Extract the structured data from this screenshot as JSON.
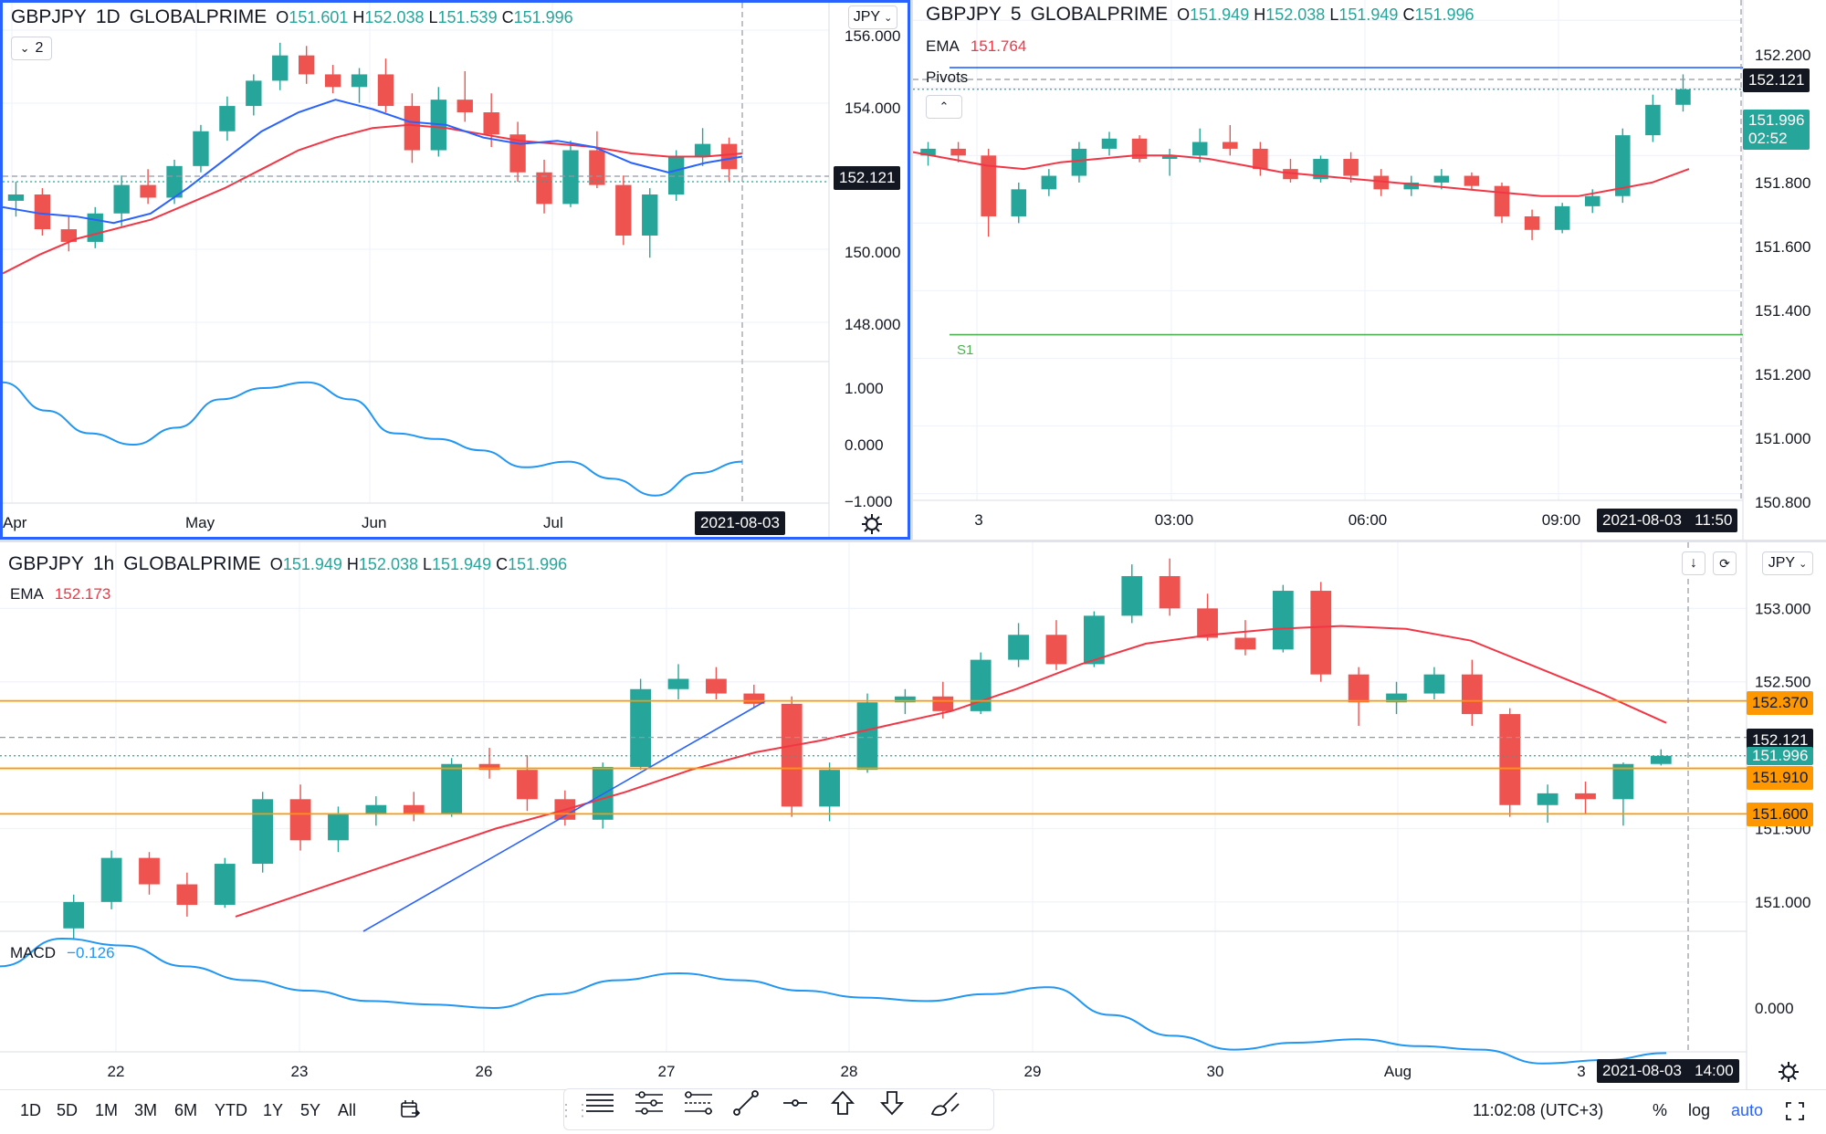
{
  "colors": {
    "up": "#26a69a",
    "down": "#ef5350",
    "ema": "#f23645",
    "blue": "#2962ff",
    "orange": "#ff9800",
    "pivot_green": "#4caf50",
    "bg": "#ffffff"
  },
  "chart_data": [
    {
      "type": "candlestick",
      "symbol": "GBPJPY",
      "interval": "1D",
      "broker": "GLOBALPRIME",
      "ohlc": {
        "o": "151.601",
        "h": "152.038",
        "l": "151.539",
        "c": "151.996"
      },
      "y_ticks": [
        "156.000",
        "154.000",
        "152.121",
        "150.000",
        "148.000"
      ],
      "ylim": [
        146.0,
        156.4
      ],
      "x_ticks": [
        "Apr",
        "May",
        "Jun",
        "Jul"
      ],
      "crosshair_date": "2021-08-03",
      "oscillator_ticks": [
        "1.000",
        "0.000",
        "−1.000"
      ],
      "series": [
        {
          "name": "EMA fast",
          "values": [
            150.8,
            150.6,
            150.5,
            150.3,
            150.6,
            151.4,
            152.3,
            153.2,
            153.8,
            154.2,
            153.9,
            153.5,
            153.4,
            153.0,
            152.8,
            152.9,
            152.7,
            152.2,
            151.9,
            152.2,
            152.4
          ]
        },
        {
          "name": "EMA slow",
          "values": [
            148.7,
            149.3,
            149.8,
            150.1,
            150.4,
            150.9,
            151.4,
            152.0,
            152.6,
            153.0,
            153.3,
            153.4,
            153.3,
            153.1,
            152.9,
            152.8,
            152.7,
            152.5,
            152.4,
            152.4,
            152.5
          ]
        },
        {
          "name": "oscillator",
          "values": [
            1.1,
            0.6,
            0.2,
            0.0,
            0.3,
            0.8,
            1.0,
            1.1,
            0.8,
            0.2,
            0.1,
            -0.1,
            -0.4,
            -0.3,
            -0.6,
            -0.9,
            -0.5,
            -0.3
          ]
        }
      ],
      "candles": [
        [
          151.0,
          151.6,
          150.5,
          151.2
        ],
        [
          151.2,
          151.4,
          149.9,
          150.1
        ],
        [
          150.1,
          150.5,
          149.4,
          149.7
        ],
        [
          149.7,
          150.8,
          149.5,
          150.6
        ],
        [
          150.6,
          151.8,
          150.2,
          151.5
        ],
        [
          151.5,
          152.0,
          150.9,
          151.1
        ],
        [
          151.1,
          152.3,
          150.9,
          152.1
        ],
        [
          152.1,
          153.4,
          151.9,
          153.2
        ],
        [
          153.2,
          154.3,
          152.9,
          154.0
        ],
        [
          154.0,
          155.0,
          153.7,
          154.8
        ],
        [
          154.8,
          156.0,
          154.5,
          155.6
        ],
        [
          155.6,
          155.9,
          154.7,
          155.0
        ],
        [
          155.0,
          155.3,
          154.4,
          154.6
        ],
        [
          154.6,
          155.2,
          154.1,
          155.0
        ],
        [
          155.0,
          155.5,
          153.8,
          154.0
        ],
        [
          154.0,
          154.4,
          152.2,
          152.6
        ],
        [
          152.6,
          154.6,
          152.4,
          154.2
        ],
        [
          154.2,
          155.1,
          153.5,
          153.8
        ],
        [
          153.8,
          154.4,
          152.7,
          153.1
        ],
        [
          153.1,
          153.5,
          151.6,
          151.9
        ],
        [
          151.9,
          152.3,
          150.6,
          150.9
        ],
        [
          150.9,
          152.9,
          150.8,
          152.6
        ],
        [
          152.6,
          153.2,
          151.4,
          151.5
        ],
        [
          151.5,
          151.8,
          149.6,
          149.9
        ],
        [
          149.9,
          151.4,
          149.2,
          151.2
        ],
        [
          151.2,
          152.6,
          151.0,
          152.4
        ],
        [
          152.4,
          153.3,
          152.1,
          152.8
        ],
        [
          152.8,
          153.0,
          151.6,
          152.0
        ]
      ]
    },
    {
      "type": "candlestick",
      "symbol": "GBPJPY",
      "interval": "5",
      "broker": "GLOBALPRIME",
      "ohlc": {
        "o": "151.949",
        "h": "152.038",
        "l": "151.949",
        "c": "151.996"
      },
      "ema_label": "EMA",
      "ema_value": "151.764",
      "pivots_label": "Pivots",
      "s1_label": "S1",
      "y_ticks": [
        "152.200",
        "152.121",
        "151.996",
        "151.800",
        "151.600",
        "151.400",
        "151.200",
        "151.000",
        "150.800"
      ],
      "countdown": "02:52",
      "ylim": [
        150.78,
        152.26
      ],
      "x_ticks": [
        "3",
        "03:00",
        "06:00",
        "09:00"
      ],
      "crosshair_date": "2021-08-03",
      "crosshair_time": "11:50",
      "levels": {
        "pivot_p": 152.06,
        "s1": 151.27,
        "last": 151.996,
        "crosshair": 152.121
      },
      "series": [
        {
          "name": "EMA",
          "values": [
            151.81,
            151.79,
            151.77,
            151.76,
            151.78,
            151.79,
            151.8,
            151.8,
            151.79,
            151.77,
            151.75,
            151.74,
            151.73,
            151.72,
            151.71,
            151.7,
            151.69,
            151.68,
            151.68,
            151.7,
            151.72,
            151.76
          ]
        }
      ],
      "candles": [
        [
          151.8,
          151.84,
          151.77,
          151.82
        ],
        [
          151.82,
          151.84,
          151.78,
          151.8
        ],
        [
          151.8,
          151.82,
          151.56,
          151.62
        ],
        [
          151.62,
          151.72,
          151.6,
          151.7
        ],
        [
          151.7,
          151.76,
          151.68,
          151.74
        ],
        [
          151.74,
          151.84,
          151.72,
          151.82
        ],
        [
          151.82,
          151.87,
          151.8,
          151.85
        ],
        [
          151.85,
          151.86,
          151.78,
          151.79
        ],
        [
          151.79,
          151.82,
          151.74,
          151.8
        ],
        [
          151.8,
          151.88,
          151.78,
          151.84
        ],
        [
          151.84,
          151.89,
          151.8,
          151.82
        ],
        [
          151.82,
          151.84,
          151.74,
          151.76
        ],
        [
          151.76,
          151.79,
          151.72,
          151.73
        ],
        [
          151.73,
          151.8,
          151.72,
          151.79
        ],
        [
          151.79,
          151.81,
          151.72,
          151.74
        ],
        [
          151.74,
          151.76,
          151.68,
          151.7
        ],
        [
          151.7,
          151.74,
          151.68,
          151.72
        ],
        [
          151.72,
          151.76,
          151.7,
          151.74
        ],
        [
          151.74,
          151.75,
          151.7,
          151.71
        ],
        [
          151.71,
          151.72,
          151.6,
          151.62
        ],
        [
          151.62,
          151.64,
          151.55,
          151.58
        ],
        [
          151.58,
          151.66,
          151.57,
          151.65
        ],
        [
          151.65,
          151.7,
          151.63,
          151.68
        ],
        [
          151.68,
          151.88,
          151.66,
          151.86
        ],
        [
          151.86,
          151.98,
          151.84,
          151.95
        ],
        [
          151.95,
          152.04,
          151.93,
          151.996
        ]
      ]
    },
    {
      "type": "candlestick",
      "symbol": "GBPJPY",
      "interval": "1h",
      "broker": "GLOBALPRIME",
      "ohlc": {
        "o": "151.949",
        "h": "152.038",
        "l": "151.949",
        "c": "151.996"
      },
      "ema_label": "EMA",
      "ema_value": "152.173",
      "macd_label": "MACD",
      "macd_value": "−0.126",
      "y_ticks": [
        "153.000",
        "152.500",
        "152.121",
        "151.996",
        "151.500",
        "151.000"
      ],
      "level_tags": [
        "152.370",
        "151.910",
        "151.600"
      ],
      "ylim": [
        150.8,
        153.45
      ],
      "x_ticks": [
        "22",
        "23",
        "26",
        "27",
        "28",
        "29",
        "30",
        "Aug",
        "3"
      ],
      "crosshair_date": "2021-08-03",
      "crosshair_time": "14:00",
      "macd_ticks": [
        "0.000"
      ],
      "levels": {
        "orange": [
          152.37,
          151.91,
          151.6
        ],
        "crosshair": 152.121,
        "last": 151.996
      },
      "series": [
        {
          "name": "EMA",
          "values": [
            150.9,
            151.05,
            151.2,
            151.35,
            151.5,
            151.62,
            151.75,
            151.9,
            152.02,
            152.1,
            152.2,
            152.3,
            152.45,
            152.62,
            152.76,
            152.82,
            152.86,
            152.88,
            152.86,
            152.78,
            152.6,
            152.42,
            152.22
          ]
        },
        {
          "name": "MACD",
          "values": [
            0.12,
            0.2,
            0.18,
            0.12,
            0.08,
            0.05,
            0.02,
            0.01,
            0.0,
            0.04,
            0.08,
            0.1,
            0.08,
            0.05,
            0.03,
            0.02,
            0.04,
            0.06,
            -0.02,
            -0.08,
            -0.12,
            -0.1,
            -0.09,
            -0.11,
            -0.12,
            -0.16,
            -0.15,
            -0.13
          ]
        }
      ],
      "candles": [
        [
          150.82,
          151.05,
          150.75,
          151.0
        ],
        [
          151.0,
          151.35,
          150.95,
          151.3
        ],
        [
          151.3,
          151.34,
          151.05,
          151.12
        ],
        [
          151.12,
          151.2,
          150.9,
          150.98
        ],
        [
          150.98,
          151.3,
          150.96,
          151.26
        ],
        [
          151.26,
          151.75,
          151.2,
          151.7
        ],
        [
          151.7,
          151.8,
          151.35,
          151.42
        ],
        [
          151.42,
          151.65,
          151.34,
          151.6
        ],
        [
          151.6,
          151.72,
          151.52,
          151.66
        ],
        [
          151.66,
          151.75,
          151.55,
          151.6
        ],
        [
          151.6,
          151.98,
          151.58,
          151.94
        ],
        [
          151.94,
          152.05,
          151.84,
          151.9
        ],
        [
          151.9,
          152.0,
          151.62,
          151.7
        ],
        [
          151.7,
          151.76,
          151.52,
          151.56
        ],
        [
          151.56,
          151.95,
          151.5,
          151.92
        ],
        [
          151.92,
          152.52,
          151.9,
          152.45
        ],
        [
          152.45,
          152.62,
          152.38,
          152.52
        ],
        [
          152.52,
          152.6,
          152.38,
          152.42
        ],
        [
          152.42,
          152.48,
          152.32,
          152.35
        ],
        [
          152.35,
          152.4,
          151.58,
          151.65
        ],
        [
          151.65,
          151.95,
          151.55,
          151.9
        ],
        [
          151.9,
          152.42,
          151.88,
          152.36
        ],
        [
          152.36,
          152.45,
          152.28,
          152.4
        ],
        [
          152.4,
          152.5,
          152.25,
          152.3
        ],
        [
          152.3,
          152.7,
          152.28,
          152.65
        ],
        [
          152.65,
          152.9,
          152.6,
          152.82
        ],
        [
          152.82,
          152.92,
          152.58,
          152.62
        ],
        [
          152.62,
          152.98,
          152.6,
          152.95
        ],
        [
          152.95,
          153.3,
          152.9,
          153.22
        ],
        [
          153.22,
          153.34,
          152.95,
          153.0
        ],
        [
          153.0,
          153.1,
          152.78,
          152.8
        ],
        [
          152.8,
          152.92,
          152.68,
          152.72
        ],
        [
          152.72,
          153.16,
          152.7,
          153.12
        ],
        [
          153.12,
          153.18,
          152.5,
          152.55
        ],
        [
          152.55,
          152.6,
          152.2,
          152.36
        ],
        [
          152.36,
          152.5,
          152.28,
          152.42
        ],
        [
          152.42,
          152.6,
          152.38,
          152.55
        ],
        [
          152.55,
          152.65,
          152.2,
          152.28
        ],
        [
          152.28,
          152.32,
          151.58,
          151.66
        ],
        [
          151.66,
          151.8,
          151.54,
          151.74
        ],
        [
          151.74,
          151.82,
          151.6,
          151.7
        ],
        [
          151.7,
          151.95,
          151.52,
          151.94
        ],
        [
          151.94,
          152.04,
          151.93,
          151.996
        ]
      ]
    }
  ],
  "bottom_bar": {
    "ranges": [
      "1D",
      "5D",
      "1M",
      "3M",
      "6M",
      "YTD",
      "1Y",
      "5Y",
      "All"
    ],
    "clock": "11:02:08 (UTC+3)",
    "percent": "%",
    "log": "log",
    "auto": "auto"
  },
  "pane_a": {
    "currency": "JPY",
    "indicator_count": "2"
  },
  "pane_c": {
    "currency": "JPY"
  }
}
